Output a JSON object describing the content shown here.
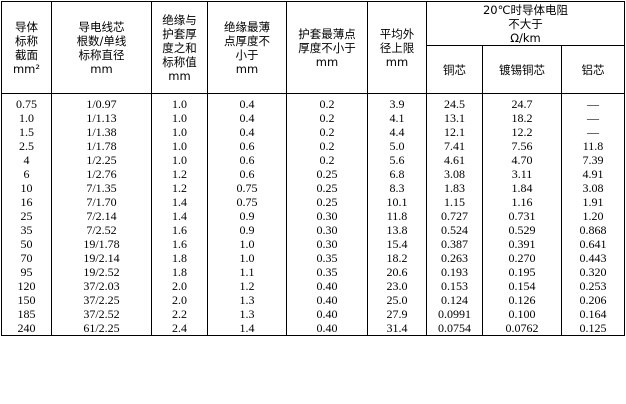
{
  "headers": {
    "col1": [
      "导体",
      "标称",
      "截面",
      "mm²"
    ],
    "col2": [
      "导电线芯",
      "根数/单线",
      "标称直径",
      "mm"
    ],
    "col3": [
      "绝缘与",
      "护套厚",
      "度之和",
      "标称值",
      "mm"
    ],
    "col4": [
      "绝缘最薄",
      "点厚度不",
      "小于",
      "mm"
    ],
    "col5": [
      "护套最薄点",
      "厚度不小于",
      "mm"
    ],
    "col6": [
      "平均外",
      "径上限",
      "mm"
    ],
    "resistance_group": [
      "20℃时导体电阻",
      "不大于",
      "Ω/km"
    ],
    "resistance_sub": [
      "铜芯",
      "镀锡铜芯",
      "铝芯"
    ]
  },
  "rows": [
    [
      "0.75",
      "1/0.97",
      "1.0",
      "0.4",
      "0.2",
      "3.9",
      "24.5",
      "24.7",
      "—"
    ],
    [
      "1.0",
      "1/1.13",
      "1.0",
      "0.4",
      "0.2",
      "4.1",
      "13.1",
      "18.2",
      "—"
    ],
    [
      "1.5",
      "1/1.38",
      "1.0",
      "0.4",
      "0.2",
      "4.4",
      "12.1",
      "12.2",
      "—"
    ],
    [
      "2.5",
      "1/1.78",
      "1.0",
      "0.6",
      "0.2",
      "5.0",
      "7.41",
      "7.56",
      "11.8"
    ],
    [
      "4",
      "1/2.25",
      "1.0",
      "0.6",
      "0.2",
      "5.6",
      "4.61",
      "4.70",
      "7.39"
    ],
    [
      "6",
      "1/2.76",
      "1.2",
      "0.6",
      "0.25",
      "6.8",
      "3.08",
      "3.11",
      "4.91"
    ],
    [
      "10",
      "7/1.35",
      "1.2",
      "0.75",
      "0.25",
      "8.3",
      "1.83",
      "1.84",
      "3.08"
    ],
    [
      "16",
      "7/1.70",
      "1.4",
      "0.75",
      "0.25",
      "10.1",
      "1.15",
      "1.16",
      "1.91"
    ],
    [
      "25",
      "7/2.14",
      "1.4",
      "0.9",
      "0.30",
      "11.8",
      "0.727",
      "0.731",
      "1.20"
    ],
    [
      "35",
      "7/2.52",
      "1.6",
      "0.9",
      "0.30",
      "13.8",
      "0.524",
      "0.529",
      "0.868"
    ],
    [
      "50",
      "19/1.78",
      "1.6",
      "1.0",
      "0.30",
      "15.4",
      "0.387",
      "0.391",
      "0.641"
    ],
    [
      "70",
      "19/2.14",
      "1.8",
      "1.0",
      "0.35",
      "18.2",
      "0.263",
      "0.270",
      "0.443"
    ],
    [
      "95",
      "19/2.52",
      "1.8",
      "1.1",
      "0.35",
      "20.6",
      "0.193",
      "0.195",
      "0.320"
    ],
    [
      "120",
      "37/2.03",
      "2.0",
      "1.2",
      "0.40",
      "23.0",
      "0.153",
      "0.154",
      "0.253"
    ],
    [
      "150",
      "37/2.25",
      "2.0",
      "1.3",
      "0.40",
      "25.0",
      "0.124",
      "0.126",
      "0.206"
    ],
    [
      "185",
      "37/2.52",
      "2.2",
      "1.3",
      "0.40",
      "27.9",
      "0.0991",
      "0.100",
      "0.164"
    ],
    [
      "240",
      "61/2.25",
      "2.4",
      "1.4",
      "0.40",
      "31.4",
      "0.0754",
      "0.0762",
      "0.125"
    ]
  ]
}
